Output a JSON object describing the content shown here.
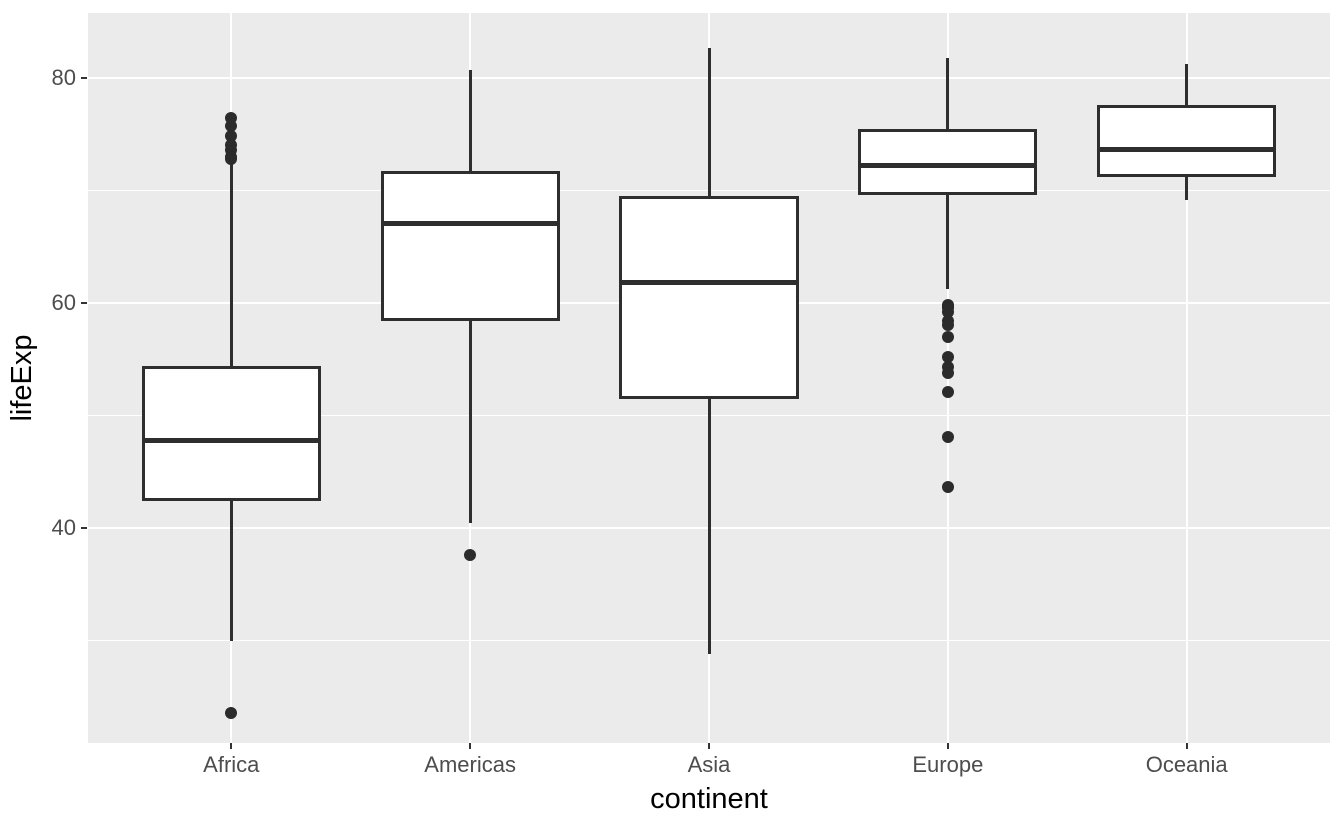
{
  "chart_data": {
    "type": "boxplot",
    "title": "",
    "xlabel": "continent",
    "ylabel": "lifeExp",
    "categories": [
      "Africa",
      "Americas",
      "Asia",
      "Europe",
      "Oceania"
    ],
    "y_axis": {
      "major_ticks": [
        40,
        60,
        80
      ],
      "minor_gridlines": [
        30,
        50,
        70
      ],
      "ylim": [
        20.9,
        85.75
      ]
    },
    "x_axis": {
      "grid_at_category_centers": true
    },
    "series": [
      {
        "category": "Africa",
        "whisker_low": 30.0,
        "q1": 42.37,
        "median": 47.79,
        "q3": 54.41,
        "whisker_high": 72.3,
        "outliers": [
          76.4,
          75.7,
          74.8,
          74.0,
          73.6,
          73.0,
          72.8,
          23.6
        ]
      },
      {
        "category": "Americas",
        "whisker_low": 40.4,
        "q1": 58.41,
        "median": 67.05,
        "q3": 71.7,
        "whisker_high": 80.65,
        "outliers": [
          37.6
        ]
      },
      {
        "category": "Asia",
        "whisker_low": 28.8,
        "q1": 51.43,
        "median": 61.79,
        "q3": 69.51,
        "whisker_high": 82.6,
        "outliers": []
      },
      {
        "category": "Europe",
        "whisker_low": 61.2,
        "q1": 69.57,
        "median": 72.24,
        "q3": 75.46,
        "whisker_high": 81.76,
        "outliers": [
          59.8,
          59.6,
          59.5,
          59.2,
          58.4,
          58.0,
          57.0,
          55.2,
          54.3,
          53.8,
          52.1,
          48.1,
          43.6
        ]
      },
      {
        "category": "Oceania",
        "whisker_low": 69.12,
        "q1": 71.2,
        "median": 73.66,
        "q3": 77.55,
        "whisker_high": 81.24,
        "outliers": []
      }
    ],
    "style": {
      "panel_bg": "#EBEBEB",
      "gridline_color": "#FFFFFF",
      "box_stroke": "#2E2E2E",
      "box_fill": "#FFFFFF",
      "outlier_color": "#2B2B2B",
      "tick_mark_color": "#333333",
      "axis_text_color": "#4D4D4D",
      "axis_title_color": "#000000"
    },
    "legend": "none"
  }
}
